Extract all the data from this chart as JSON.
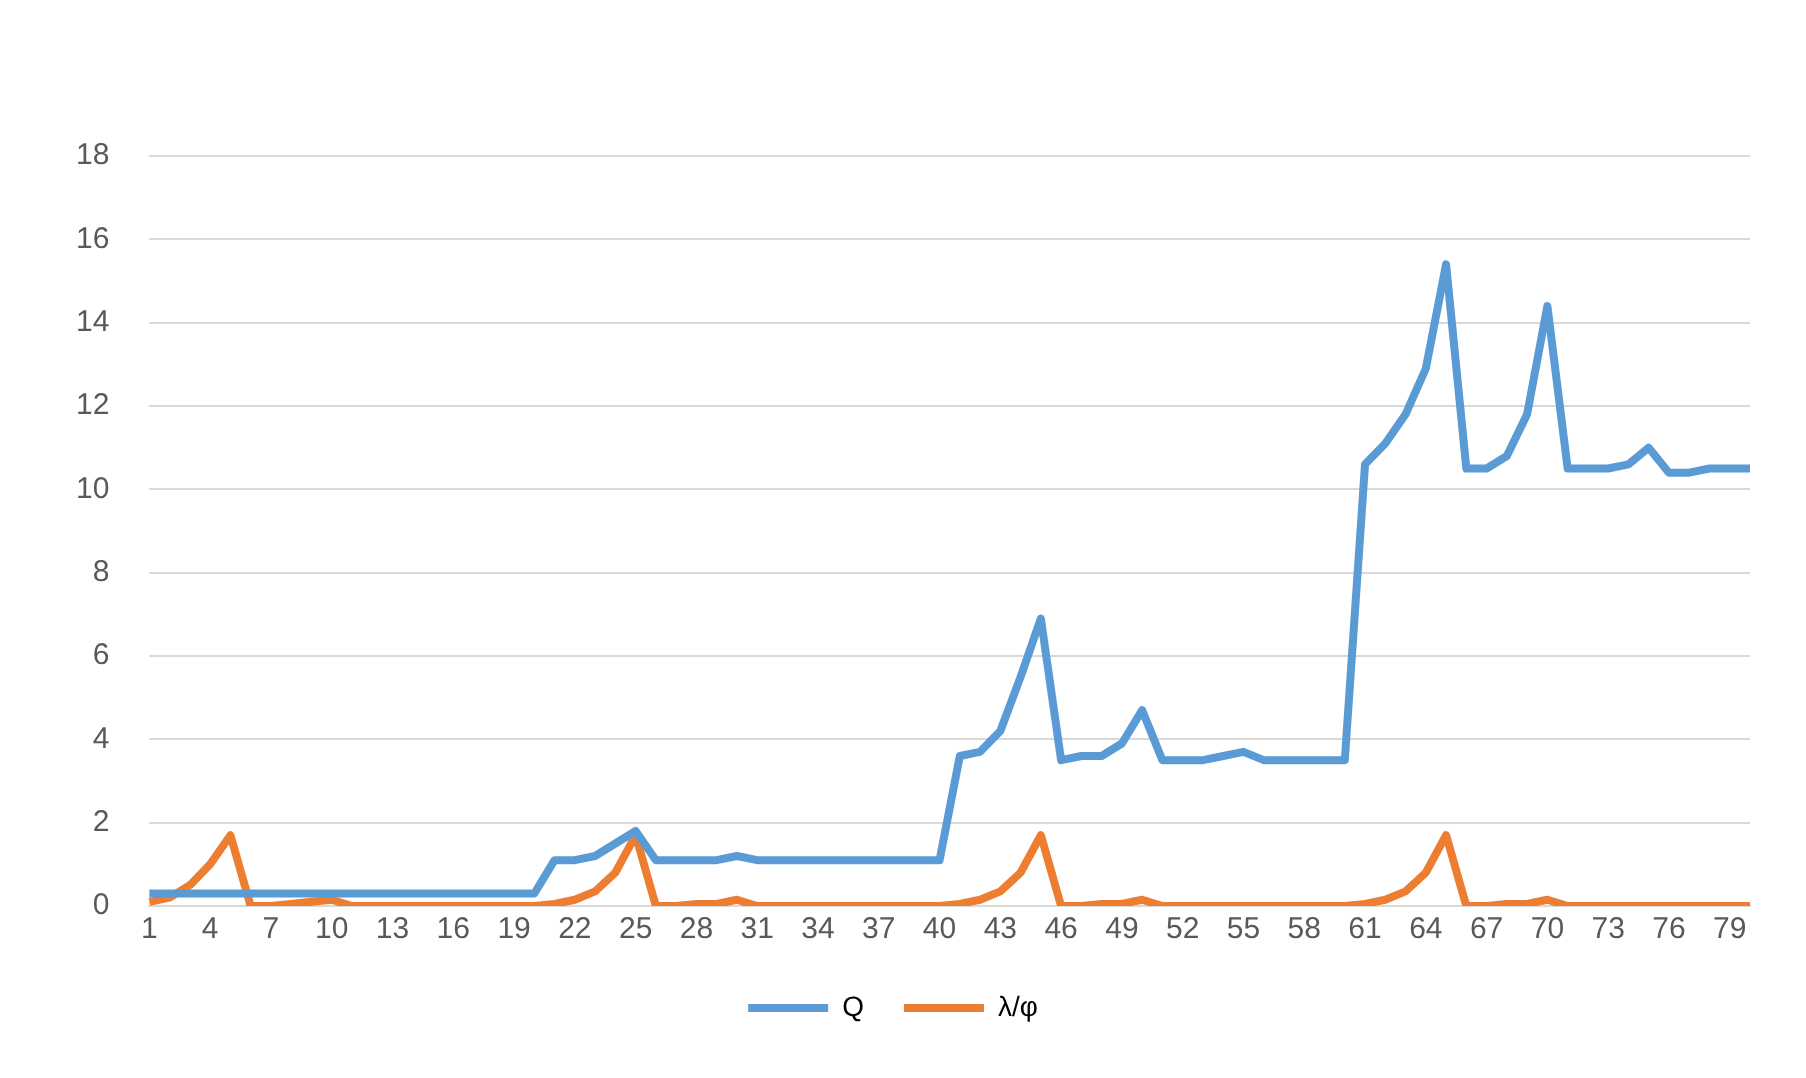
{
  "chart_data": {
    "type": "line",
    "categories": [
      "1",
      null,
      null,
      "4",
      null,
      null,
      "7",
      null,
      null,
      "10",
      null,
      null,
      "13",
      null,
      null,
      "16",
      null,
      null,
      "19",
      null,
      null,
      "22",
      null,
      null,
      "25",
      null,
      null,
      "28",
      null,
      null,
      "31",
      null,
      null,
      "34",
      null,
      null,
      "37",
      null,
      null,
      "40",
      null,
      null,
      "43",
      null,
      null,
      "46",
      null,
      null,
      "49",
      null,
      null,
      "52",
      null,
      null,
      "55",
      null,
      null,
      "58",
      null,
      null,
      "61",
      null,
      null,
      "64",
      null,
      null,
      "67",
      null,
      null,
      "70",
      null,
      null,
      "73",
      null,
      null,
      "76",
      null,
      null,
      "79",
      null
    ],
    "series": [
      {
        "name": "Q",
        "color": "#5b9bd5",
        "values": [
          0.3,
          0.3,
          0.3,
          0.3,
          0.3,
          0.3,
          0.3,
          0.3,
          0.3,
          0.3,
          0.3,
          0.3,
          0.3,
          0.3,
          0.3,
          0.3,
          0.3,
          0.3,
          0.3,
          0.3,
          1.1,
          1.1,
          1.2,
          1.5,
          1.8,
          1.1,
          1.1,
          1.1,
          1.1,
          1.2,
          1.1,
          1.1,
          1.1,
          1.1,
          1.1,
          1.1,
          1.1,
          1.1,
          1.1,
          1.1,
          3.6,
          3.7,
          4.2,
          5.5,
          6.9,
          3.5,
          3.6,
          3.6,
          3.9,
          4.7,
          3.5,
          3.5,
          3.5,
          3.6,
          3.7,
          3.5,
          3.5,
          3.5,
          3.5,
          3.5,
          10.6,
          11.1,
          11.8,
          12.9,
          15.4,
          10.5,
          10.5,
          10.8,
          11.8,
          14.4,
          10.5,
          10.5,
          10.5,
          10.6,
          11.0,
          10.4,
          10.4,
          10.5,
          10.5,
          10.5
        ]
      },
      {
        "name": "λ/φ",
        "color": "#ed7d31",
        "values": [
          0.1,
          0.2,
          0.5,
          1.0,
          1.7,
          0,
          0,
          0.05,
          0.1,
          0.15,
          0,
          0,
          0,
          0,
          0,
          0,
          0,
          0,
          0,
          0,
          0.05,
          0.15,
          0.35,
          0.8,
          1.7,
          0,
          0,
          0.05,
          0.05,
          0.15,
          0,
          0,
          0,
          0,
          0,
          0,
          0,
          0,
          0,
          0,
          0.05,
          0.15,
          0.35,
          0.8,
          1.7,
          0,
          0,
          0.05,
          0.05,
          0.15,
          0,
          0,
          0,
          0,
          0,
          0,
          0,
          0,
          0,
          0,
          0.05,
          0.15,
          0.35,
          0.8,
          1.7,
          0,
          0,
          0.05,
          0.05,
          0.15,
          0,
          0,
          0,
          0,
          0,
          0,
          0,
          0,
          0,
          0
        ]
      }
    ],
    "ylim": [
      0,
      18
    ],
    "yticks": [
      0,
      2,
      4,
      6,
      8,
      10,
      12,
      14,
      16,
      18
    ],
    "grid": "y",
    "legend": "bottom",
    "marker": "none",
    "line_style": "solid"
  }
}
